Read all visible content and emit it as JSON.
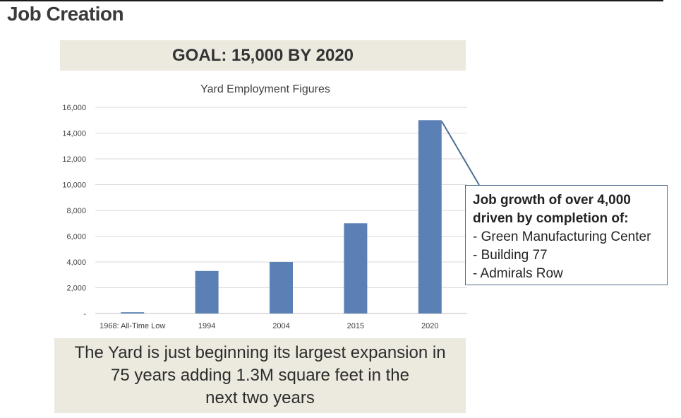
{
  "page": {
    "title": "Job Creation",
    "goal": "GOAL: 15,000 BY 2020"
  },
  "callout": {
    "line1": "Job growth of over 4,000",
    "line2": "driven by completion of:",
    "items": [
      "- Green Manufacturing Center",
      "- Building 77",
      "- Admirals Row"
    ]
  },
  "summary": {
    "lines": [
      "The Yard is just beginning its largest expansion in",
      "75 years adding 1.3M square feet in the",
      "next two years"
    ]
  },
  "colors": {
    "bar": "#5b80b5",
    "callout_border": "#4f6f92",
    "banner_bg": "#ece9df",
    "grid": "#d9d9d9"
  },
  "chart_data": {
    "type": "bar",
    "title": "Yard Employment Figures",
    "categories": [
      "1968: All-Time Low",
      "1994",
      "2004",
      "2015",
      "2020"
    ],
    "values": [
      100,
      3300,
      4000,
      7000,
      15000
    ],
    "ylim": [
      0,
      16000
    ],
    "yticks": [
      0,
      2000,
      4000,
      6000,
      8000,
      10000,
      12000,
      14000,
      16000
    ],
    "ytick_labels": [
      "-",
      "2,000",
      "4,000",
      "6,000",
      "8,000",
      "10,000",
      "12,000",
      "14,000",
      "16,000"
    ],
    "grid": true,
    "legend": "none"
  }
}
